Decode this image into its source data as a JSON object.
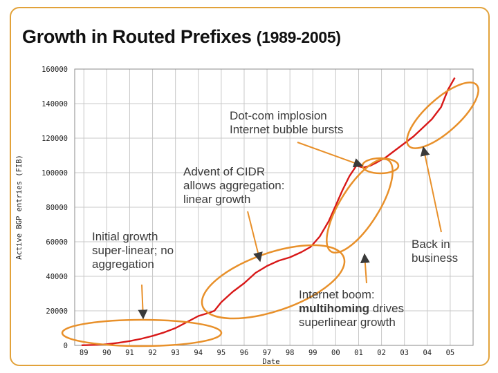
{
  "title": {
    "main": "Growth in Routed Prefixes",
    "range": "(1989-2005)"
  },
  "chart_data": {
    "type": "line",
    "xlabel": "Date",
    "ylabel": "Active BGP entries (FIB)",
    "xlim": [
      1988.6,
      2006.0
    ],
    "ylim": [
      0,
      160000
    ],
    "y_ticks": [
      "0",
      "20000",
      "40000",
      "60000",
      "80000",
      "100000",
      "120000",
      "140000",
      "160000"
    ],
    "y_tick_values": [
      0,
      20000,
      40000,
      60000,
      80000,
      100000,
      120000,
      140000,
      160000
    ],
    "x_ticks": [
      "89",
      "90",
      "91",
      "92",
      "93",
      "94",
      "95",
      "96",
      "97",
      "98",
      "99",
      "00",
      "01",
      "02",
      "03",
      "04",
      "05"
    ],
    "x_tick_values": [
      1989,
      1990,
      1991,
      1992,
      1993,
      1994,
      1995,
      1996,
      1997,
      1998,
      1999,
      2000,
      2001,
      2002,
      2003,
      2004,
      2005
    ],
    "grid": true,
    "series": [
      {
        "color": "#d81818",
        "x": [
          1988.9,
          1989.5,
          1990.0,
          1990.5,
          1991.0,
          1991.5,
          1992.0,
          1992.5,
          1993.0,
          1993.5,
          1994.0,
          1994.5,
          1994.7,
          1995.0,
          1995.5,
          1996.0,
          1996.5,
          1997.0,
          1997.5,
          1998.0,
          1998.5,
          1998.9,
          1999.3,
          1999.7,
          2000.0,
          2000.3,
          2000.6,
          2000.9,
          2001.2,
          2001.5,
          2001.8,
          2002.2,
          2002.6,
          2003.0,
          2003.4,
          2003.8,
          2004.2,
          2004.6,
          2004.9,
          2005.2
        ],
        "y": [
          100,
          300,
          700,
          1500,
          2500,
          3800,
          5500,
          7500,
          10000,
          13500,
          17000,
          19000,
          20000,
          25000,
          31000,
          36000,
          42000,
          46000,
          49000,
          51000,
          54000,
          57000,
          63000,
          72000,
          81000,
          90000,
          98000,
          104000,
          103000,
          104000,
          106000,
          109000,
          113000,
          117000,
          121000,
          126000,
          131000,
          138000,
          148000,
          155000
        ]
      }
    ]
  },
  "annotations": {
    "dotcom": [
      "Dot-com implosion",
      "Internet bubble bursts"
    ],
    "cidr": [
      "Advent of CIDR",
      "allows aggregation:",
      "linear growth"
    ],
    "initial": [
      "Initial growth",
      "super-linear; no",
      "aggregation"
    ],
    "back": [
      "Back in",
      "business"
    ],
    "boom_prefix": "Internet boom:",
    "boom_bold": "multihoming",
    "boom_rest": " drives",
    "boom_line3": "superlinear growth"
  },
  "colors": {
    "data": "#d81818",
    "highlight": "#e8902a",
    "frame": "#e2a23a",
    "arrow": "#e8902a",
    "grid": "#c8c8c8",
    "text": "#3a3a3a"
  }
}
